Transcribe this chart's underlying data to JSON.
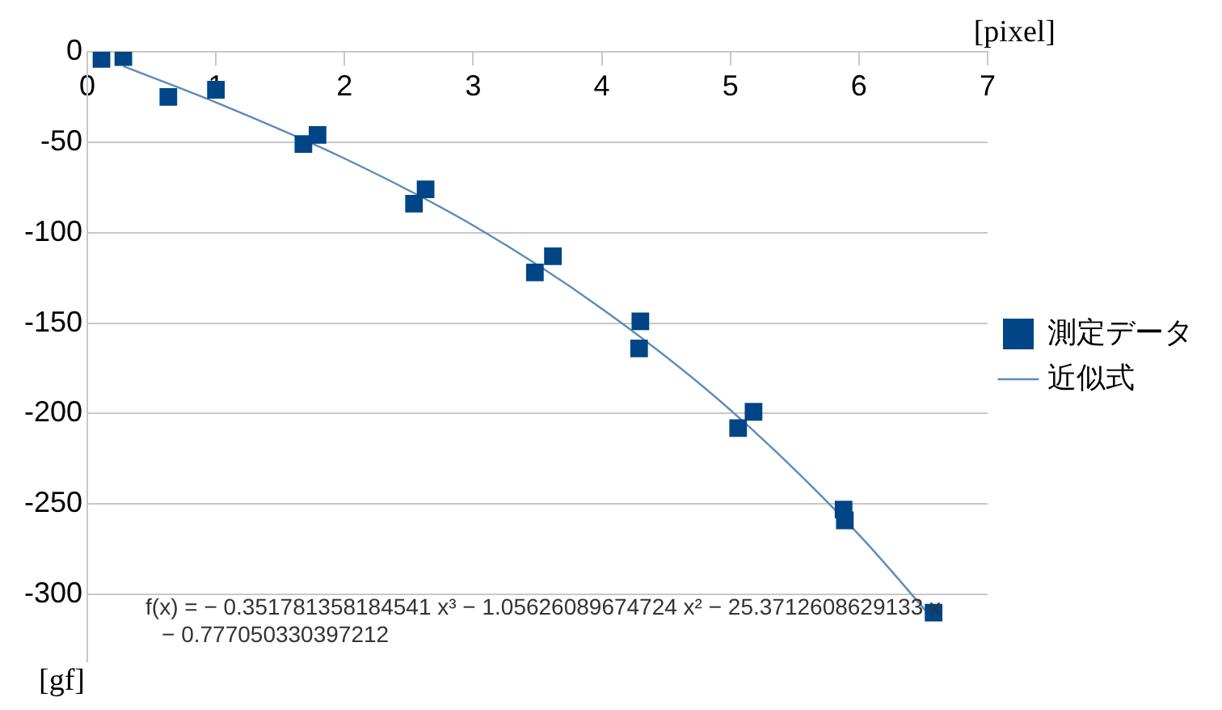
{
  "chart_data": {
    "type": "scatter",
    "xlabel": "[pixel]",
    "ylabel": "[gf]",
    "xlim": [
      0,
      7
    ],
    "xticks": [
      0,
      1,
      2,
      3,
      4,
      5,
      6,
      7
    ],
    "ylim": [
      -337,
      0
    ],
    "yticks": [
      0,
      -50,
      -100,
      -150,
      -200,
      -250,
      -300
    ],
    "grid": "y",
    "legend": "right",
    "line_style": "solid",
    "series": [
      {
        "name": "測定データ",
        "marker": "square",
        "color": "#004586",
        "x": [
          0.11,
          0.28,
          0.63,
          1.0,
          1.68,
          1.79,
          2.54,
          2.63,
          3.48,
          3.62,
          4.29,
          4.3,
          5.06,
          5.18,
          5.88,
          5.89,
          6.58
        ],
        "values": [
          -4,
          -3,
          -25,
          -21,
          -51,
          -46,
          -84,
          -76,
          -122,
          -113,
          -164,
          -149,
          -208,
          -199,
          -253,
          -259,
          -310
        ]
      },
      {
        "name": "近似式",
        "type": "line",
        "color": "#5b8bbd",
        "x": [
          0.28,
          1,
          2,
          3,
          4,
          5,
          6,
          6.58
        ],
        "values": [
          -8,
          -28,
          -59,
          -96,
          -142,
          -198,
          -267,
          -314
        ]
      }
    ],
    "annotations": [
      "f(x) = − 0.351781358184541 x³ − 1.05626089674724 x² − 25.3712608629133 x\n− 0.777050330397212"
    ]
  }
}
